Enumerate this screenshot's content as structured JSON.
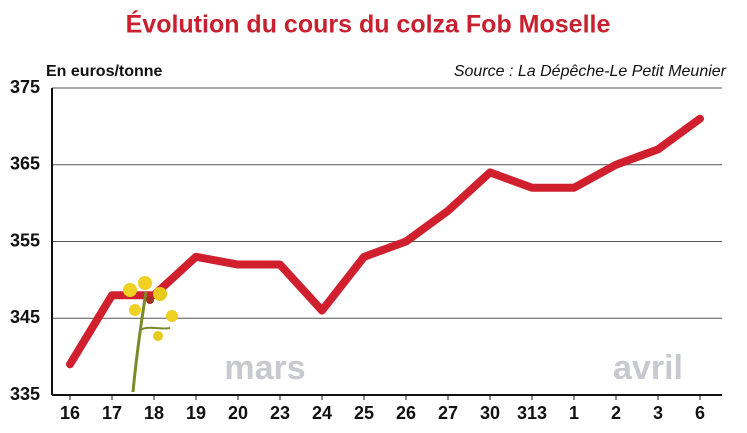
{
  "chart_data": {
    "type": "line",
    "title": "Évolution du cours du colza Fob Moselle",
    "y_label": "En euros/tonne",
    "source": "Source : La Dépêche-Le Petit Meunier",
    "categories": [
      "16",
      "17",
      "18",
      "19",
      "20",
      "23",
      "24",
      "25",
      "26",
      "27",
      "30",
      "313",
      "1",
      "2",
      "3",
      "6"
    ],
    "series": [
      {
        "color": "#d0202e",
        "values": [
          339,
          348,
          348,
          353,
          352,
          352,
          346,
          353,
          355,
          359,
          364,
          362,
          362,
          365,
          367,
          371
        ]
      }
    ],
    "annotations": [
      "mars",
      "avril"
    ],
    "ylim": [
      335,
      375
    ],
    "yticks": [
      335,
      345,
      355,
      365,
      375
    ],
    "grid": true
  }
}
